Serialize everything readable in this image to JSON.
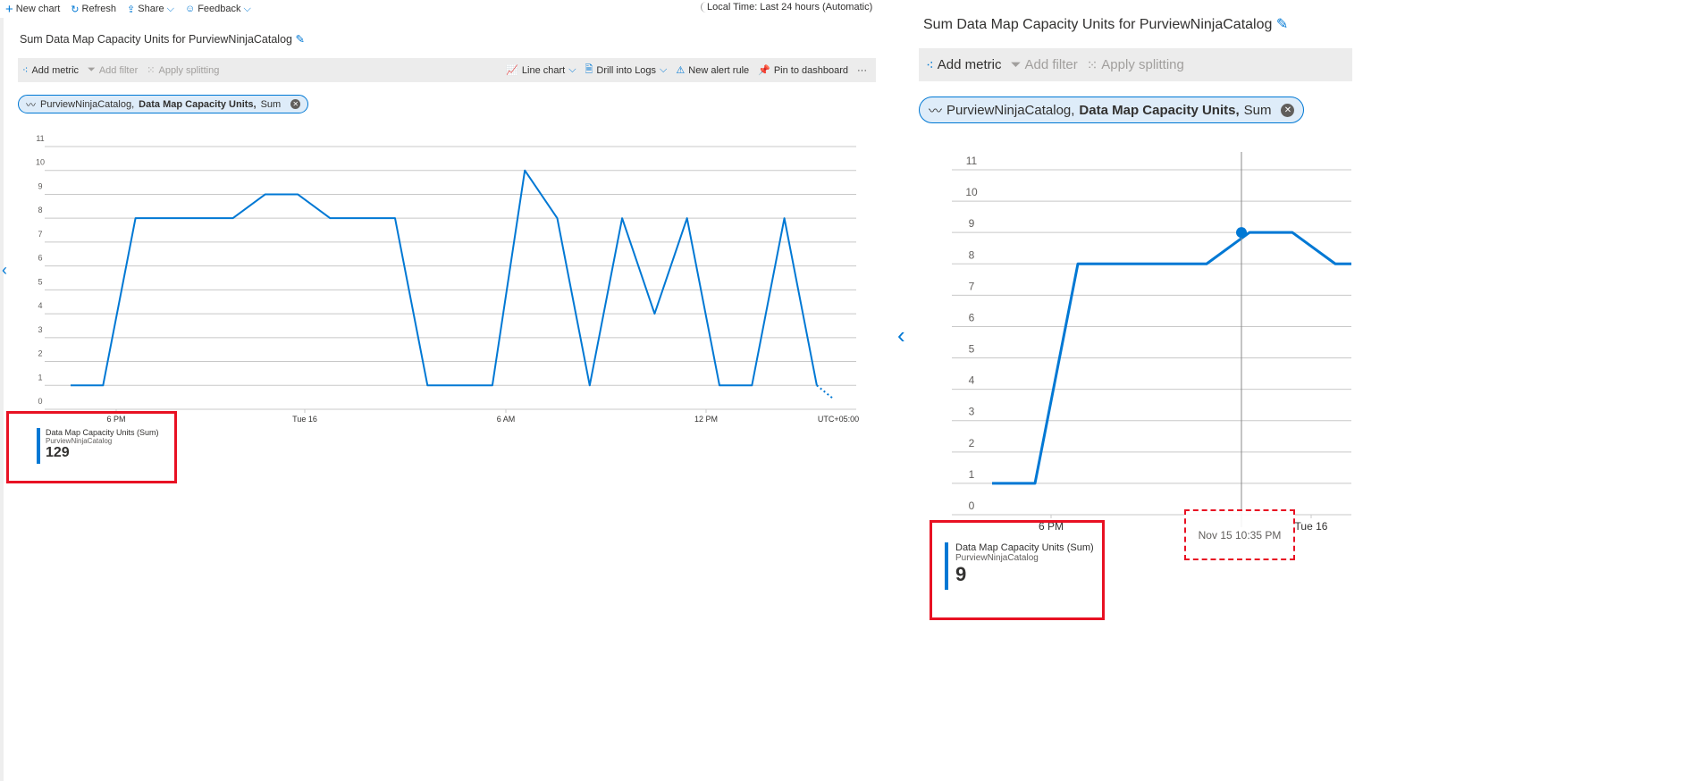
{
  "topbar": {
    "new_chart": "New chart",
    "refresh": "Refresh",
    "share": "Share",
    "feedback": "Feedback",
    "time_range": "Local Time: Last 24 hours (Automatic)"
  },
  "left": {
    "title": "Sum Data Map Capacity Units for PurviewNinjaCatalog",
    "toolbar": {
      "add_metric": "Add metric",
      "add_filter": "Add filter",
      "apply_splitting": "Apply splitting",
      "line_chart": "Line chart",
      "drill_logs": "Drill into Logs",
      "new_alert": "New alert rule",
      "pin": "Pin to dashboard",
      "more": "···"
    },
    "pill": {
      "resource": "PurviewNinjaCatalog,",
      "metric": "Data Map Capacity Units,",
      "agg": "Sum"
    },
    "legend": {
      "metric": "Data Map Capacity Units (Sum)",
      "resource": "PurviewNinjaCatalog",
      "value": "129"
    }
  },
  "right": {
    "title": "Sum Data Map Capacity Units for PurviewNinjaCatalog",
    "toolbar": {
      "add_metric": "Add metric",
      "add_filter": "Add filter",
      "apply_splitting": "Apply splitting"
    },
    "pill": {
      "resource": "PurviewNinjaCatalog,",
      "metric": "Data Map Capacity Units,",
      "agg": "Sum"
    },
    "legend": {
      "metric": "Data Map Capacity Units (Sum)",
      "resource": "PurviewNinjaCatalog",
      "value": "9"
    },
    "tooltip": "Nov 15 10:35 PM"
  },
  "colors": {
    "series": "#0078d4",
    "highlight": "#e81123",
    "grid": "#c8c8c8"
  },
  "chart_data": [
    {
      "type": "line",
      "ylim": [
        0,
        11
      ],
      "yticks": [
        "0",
        "1",
        "2",
        "3",
        "4",
        "5",
        "6",
        "7",
        "8",
        "9",
        "10",
        "11"
      ],
      "xticks": [
        "6 PM",
        "Tue 16",
        "6 AM",
        "12 PM",
        "UTC+05:00"
      ],
      "values": [
        1,
        1,
        8,
        8,
        8,
        8,
        9,
        9,
        8,
        8,
        8,
        1,
        1,
        1,
        10,
        8,
        1,
        8,
        4,
        8,
        1,
        1,
        8,
        1,
        0
      ],
      "grid": true
    },
    {
      "type": "line",
      "ylim": [
        0,
        11
      ],
      "yticks": [
        "0",
        "1",
        "2",
        "3",
        "4",
        "5",
        "6",
        "7",
        "8",
        "9",
        "10",
        "11"
      ],
      "xticks": [
        "6 PM",
        "Tue 16"
      ],
      "values": [
        1,
        1,
        8,
        8,
        8,
        8,
        9,
        9,
        8,
        8
      ],
      "highlight_point": {
        "x": "Nov 15 10:35 PM",
        "y": 9
      },
      "grid": true
    }
  ]
}
